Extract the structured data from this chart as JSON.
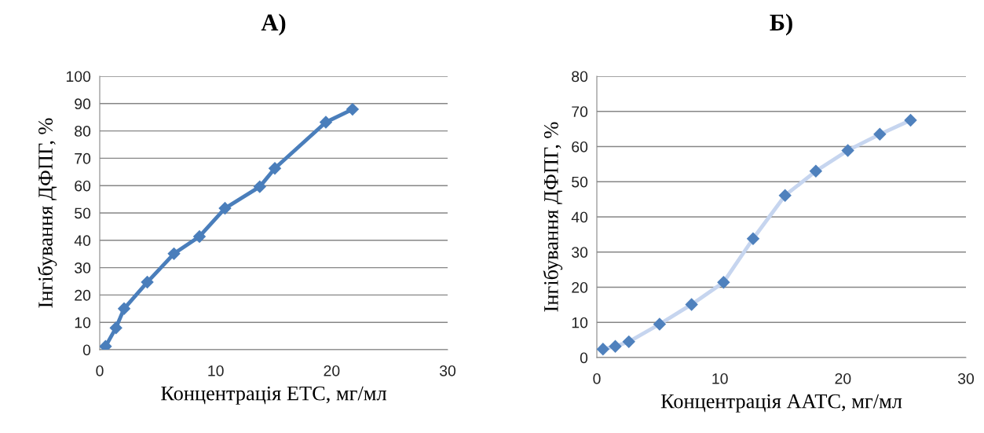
{
  "chart_data": [
    {
      "type": "line",
      "title": "А)",
      "xlabel": "Концентрація ЕТС, мг/мл",
      "ylabel": "Інгібування ДФПГ, %",
      "xlim": [
        0,
        30
      ],
      "xticks": [
        0,
        10,
        20,
        30
      ],
      "ylim": [
        0,
        100
      ],
      "yticks": [
        0,
        10,
        20,
        30,
        40,
        50,
        60,
        70,
        80,
        90,
        100
      ],
      "grid": "y",
      "marker": "diamond",
      "legend": false,
      "series": [
        {
          "color": "#4a7ebb",
          "x": [
            0.5,
            1.4,
            2.1,
            4.1,
            6.4,
            8.6,
            10.8,
            13.8,
            15.1,
            19.5,
            21.8
          ],
          "values": [
            1.2,
            8,
            15,
            24.7,
            35.1,
            41.4,
            51.7,
            59.6,
            66.3,
            83.2,
            87.9
          ]
        }
      ]
    },
    {
      "type": "line",
      "title": "Б)",
      "xlabel": "Концентрація ААТС, мг/мл",
      "ylabel": "Інгібування ДФПГ, %",
      "xlim": [
        0,
        30
      ],
      "xticks": [
        0,
        10,
        20,
        30
      ],
      "ylim": [
        0,
        80
      ],
      "yticks": [
        0,
        10,
        20,
        30,
        40,
        50,
        60,
        70,
        80
      ],
      "grid": "y",
      "marker": "diamond",
      "legend": false,
      "series": [
        {
          "color": "#c6d5ef",
          "colors": [
            "#4f81bd",
            "#4f81bd",
            "#4f81bd",
            "#4f81bd",
            "#4f81bd",
            "#4f81bd",
            "#4f81bd",
            "#4f81bd",
            "#4f81bd",
            "#4f81bd",
            "#4f81bd",
            "#4f81bd"
          ],
          "x": [
            0.5,
            1.5,
            2.6,
            5.1,
            7.7,
            10.3,
            12.7,
            15.3,
            17.8,
            20.4,
            23.0,
            25.5
          ],
          "values": [
            2.4,
            3.2,
            4.5,
            9.5,
            15.1,
            21.4,
            33.8,
            46.1,
            53.0,
            58.9,
            63.5,
            67.5
          ]
        }
      ]
    }
  ]
}
